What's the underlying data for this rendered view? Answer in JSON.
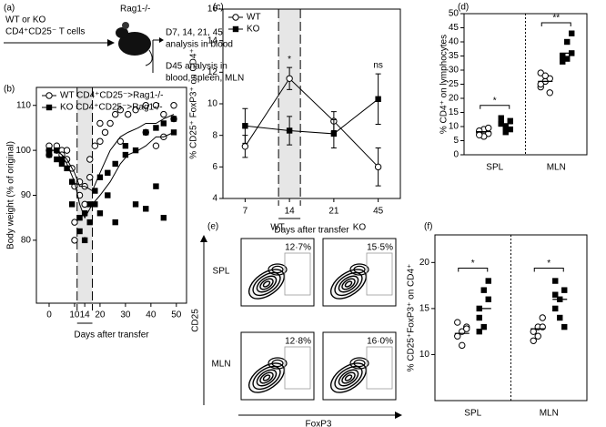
{
  "diagram": {
    "panel": "(a)",
    "source": [
      "WT or KO",
      "CD4⁺CD25⁻ T cells"
    ],
    "host": "Rag1-/-",
    "analysis_1": [
      "D7, 14, 21, 45",
      "analysis in blood"
    ],
    "analysis_2": [
      "D45 analysis in",
      "blood, spleen, MLN"
    ]
  },
  "chart_data": [
    {
      "type": "line",
      "panel": "(b)",
      "y_label": "Body weight (% of original)",
      "x_label": "Days after transfer",
      "xlim": [
        -5,
        54
      ],
      "ylim": [
        66,
        114
      ],
      "xticks": [
        0,
        10,
        14,
        20,
        30,
        40,
        50
      ],
      "yticks": [
        80,
        90,
        100,
        110
      ],
      "highlight": [
        11,
        17
      ],
      "series": [
        {
          "name": "WT CD4⁺CD25⁻>Rag1-/-",
          "marker": "circle",
          "color": "#000000",
          "x": [
            0,
            3,
            5,
            7,
            10,
            12,
            14,
            17,
            20,
            24,
            28,
            31,
            35,
            38,
            42,
            45,
            49
          ],
          "values": [
            100,
            100,
            99,
            98,
            95,
            92,
            92,
            91,
            95,
            100,
            103,
            104,
            105,
            106,
            106,
            107,
            108
          ]
        },
        {
          "name": "KO CD4⁺CD25⁻>Rag1-/-",
          "marker": "square",
          "color": "#000000",
          "x": [
            0,
            3,
            5,
            7,
            10,
            12,
            14,
            17,
            20,
            24,
            28,
            31,
            35,
            38,
            42,
            45,
            49
          ],
          "values": [
            100,
            100,
            99,
            97,
            93,
            88,
            85,
            88,
            90,
            93,
            97,
            99,
            100,
            101,
            103,
            103,
            104
          ]
        }
      ],
      "scatter": [
        {
          "marker": "circle",
          "x": [
            0,
            0,
            0,
            3,
            3,
            5,
            5,
            7,
            7,
            9,
            10,
            10,
            10,
            12,
            12,
            14,
            14,
            16,
            16,
            18,
            20,
            20,
            22,
            24,
            26,
            28,
            28,
            31,
            34,
            38,
            38,
            42,
            42,
            45,
            45,
            49,
            49
          ],
          "values": [
            100,
            101,
            99,
            100,
            101,
            100,
            99,
            98,
            100,
            96,
            80,
            84,
            92,
            90,
            93,
            88,
            92,
            94,
            98,
            101,
            102,
            106,
            104,
            106,
            108,
            109,
            102,
            108,
            109,
            110,
            104,
            110,
            101,
            108,
            103,
            110,
            107
          ]
        },
        {
          "marker": "square",
          "x": [
            0,
            0,
            3,
            3,
            5,
            5,
            7,
            9,
            9,
            12,
            12,
            14,
            14,
            16,
            16,
            18,
            18,
            20,
            20,
            23,
            23,
            26,
            26,
            30,
            30,
            34,
            34,
            38,
            38,
            42,
            42,
            45,
            45,
            49,
            49
          ],
          "values": [
            100,
            99,
            100,
            98,
            98,
            97,
            96,
            93,
            88,
            85,
            82,
            80,
            86,
            84,
            88,
            88,
            91,
            86,
            94,
            95,
            90,
            97,
            84,
            99,
            101,
            100,
            88,
            104,
            87,
            105,
            92,
            106,
            85,
            107,
            104
          ]
        }
      ],
      "annotations": [
        {
          "text": "*",
          "x": 14
        }
      ]
    },
    {
      "type": "line",
      "panel": "(c)",
      "y_label": "% CD25⁺ FoxP3⁺ on CD4⁺",
      "x_label": "Days after transfer",
      "categories": [
        "7",
        "14",
        "21",
        "45"
      ],
      "ylim": [
        4,
        16
      ],
      "yticks": [
        4,
        6,
        8,
        10,
        12,
        14,
        16
      ],
      "highlight_index": 1,
      "series": [
        {
          "name": "WT",
          "marker": "circle",
          "color": "#000000",
          "values": [
            7.3,
            11.6,
            8.9,
            6.0
          ],
          "errors": [
            0.7,
            0.7,
            0.6,
            1.2
          ]
        },
        {
          "name": "KO",
          "marker": "square",
          "color": "#000000",
          "values": [
            8.6,
            8.3,
            8.1,
            10.3
          ],
          "errors": [
            1.1,
            0.9,
            0.9,
            1.6
          ]
        }
      ],
      "annotations": [
        {
          "text": "*",
          "category": 1
        },
        {
          "text": "ns",
          "category": 3
        }
      ]
    },
    {
      "type": "dot",
      "panel": "(d)",
      "y_label": "% CD4⁺ on lymphocytes",
      "categories": [
        "SPL",
        "MLN"
      ],
      "ylim": [
        0,
        50
      ],
      "yticks": [
        0,
        5,
        10,
        15,
        20,
        25,
        30,
        35,
        40,
        45,
        50
      ],
      "series": [
        {
          "marker": "circle",
          "values": [
            [
              8,
              9,
              7.5,
              8.5,
              6.5,
              9.5,
              7
            ],
            [
              24,
              26,
              27,
              29,
              28,
              22,
              25
            ]
          ],
          "means": [
            8.2,
            26
          ]
        },
        {
          "marker": "square",
          "values": [
            [
              11,
              10,
              12,
              13,
              8,
              9,
              11
            ],
            [
              33,
              34,
              36,
              35,
              40,
              43,
              35
            ]
          ],
          "means": [
            11,
            36
          ]
        }
      ],
      "significance": [
        "*",
        "**"
      ]
    },
    {
      "type": "dot",
      "panel": "(f)",
      "y_label": "% CD25⁺FoxP3⁺ on CD4⁺",
      "categories": [
        "SPL",
        "MLN"
      ],
      "ylim": [
        5,
        23
      ],
      "yticks": [
        10,
        15,
        20
      ],
      "series": [
        {
          "marker": "circle",
          "values": [
            [
              12,
              12.5,
              13,
              13.5,
              11,
              12.8
            ],
            [
              12.5,
              13,
              14,
              11.5,
              12,
              13
            ]
          ],
          "means": [
            12.3,
            12.8
          ]
        },
        {
          "marker": "square",
          "values": [
            [
              15,
              17,
              18,
              14,
              13,
              16,
              12.5
            ],
            [
              15,
              16,
              17,
              18,
              14,
              13,
              16.5
            ]
          ],
          "means": [
            15,
            16
          ]
        }
      ],
      "significance": [
        "*",
        "*"
      ]
    }
  ],
  "flow": {
    "panel": "(e)",
    "columns": [
      "WT",
      "KO"
    ],
    "rows": [
      "SPL",
      "MLN"
    ],
    "y_label": "CD25",
    "x_label": "FoxP3",
    "gates": [
      [
        "12·7%",
        "15·5%"
      ],
      [
        "12·8%",
        "16·0%"
      ]
    ]
  }
}
